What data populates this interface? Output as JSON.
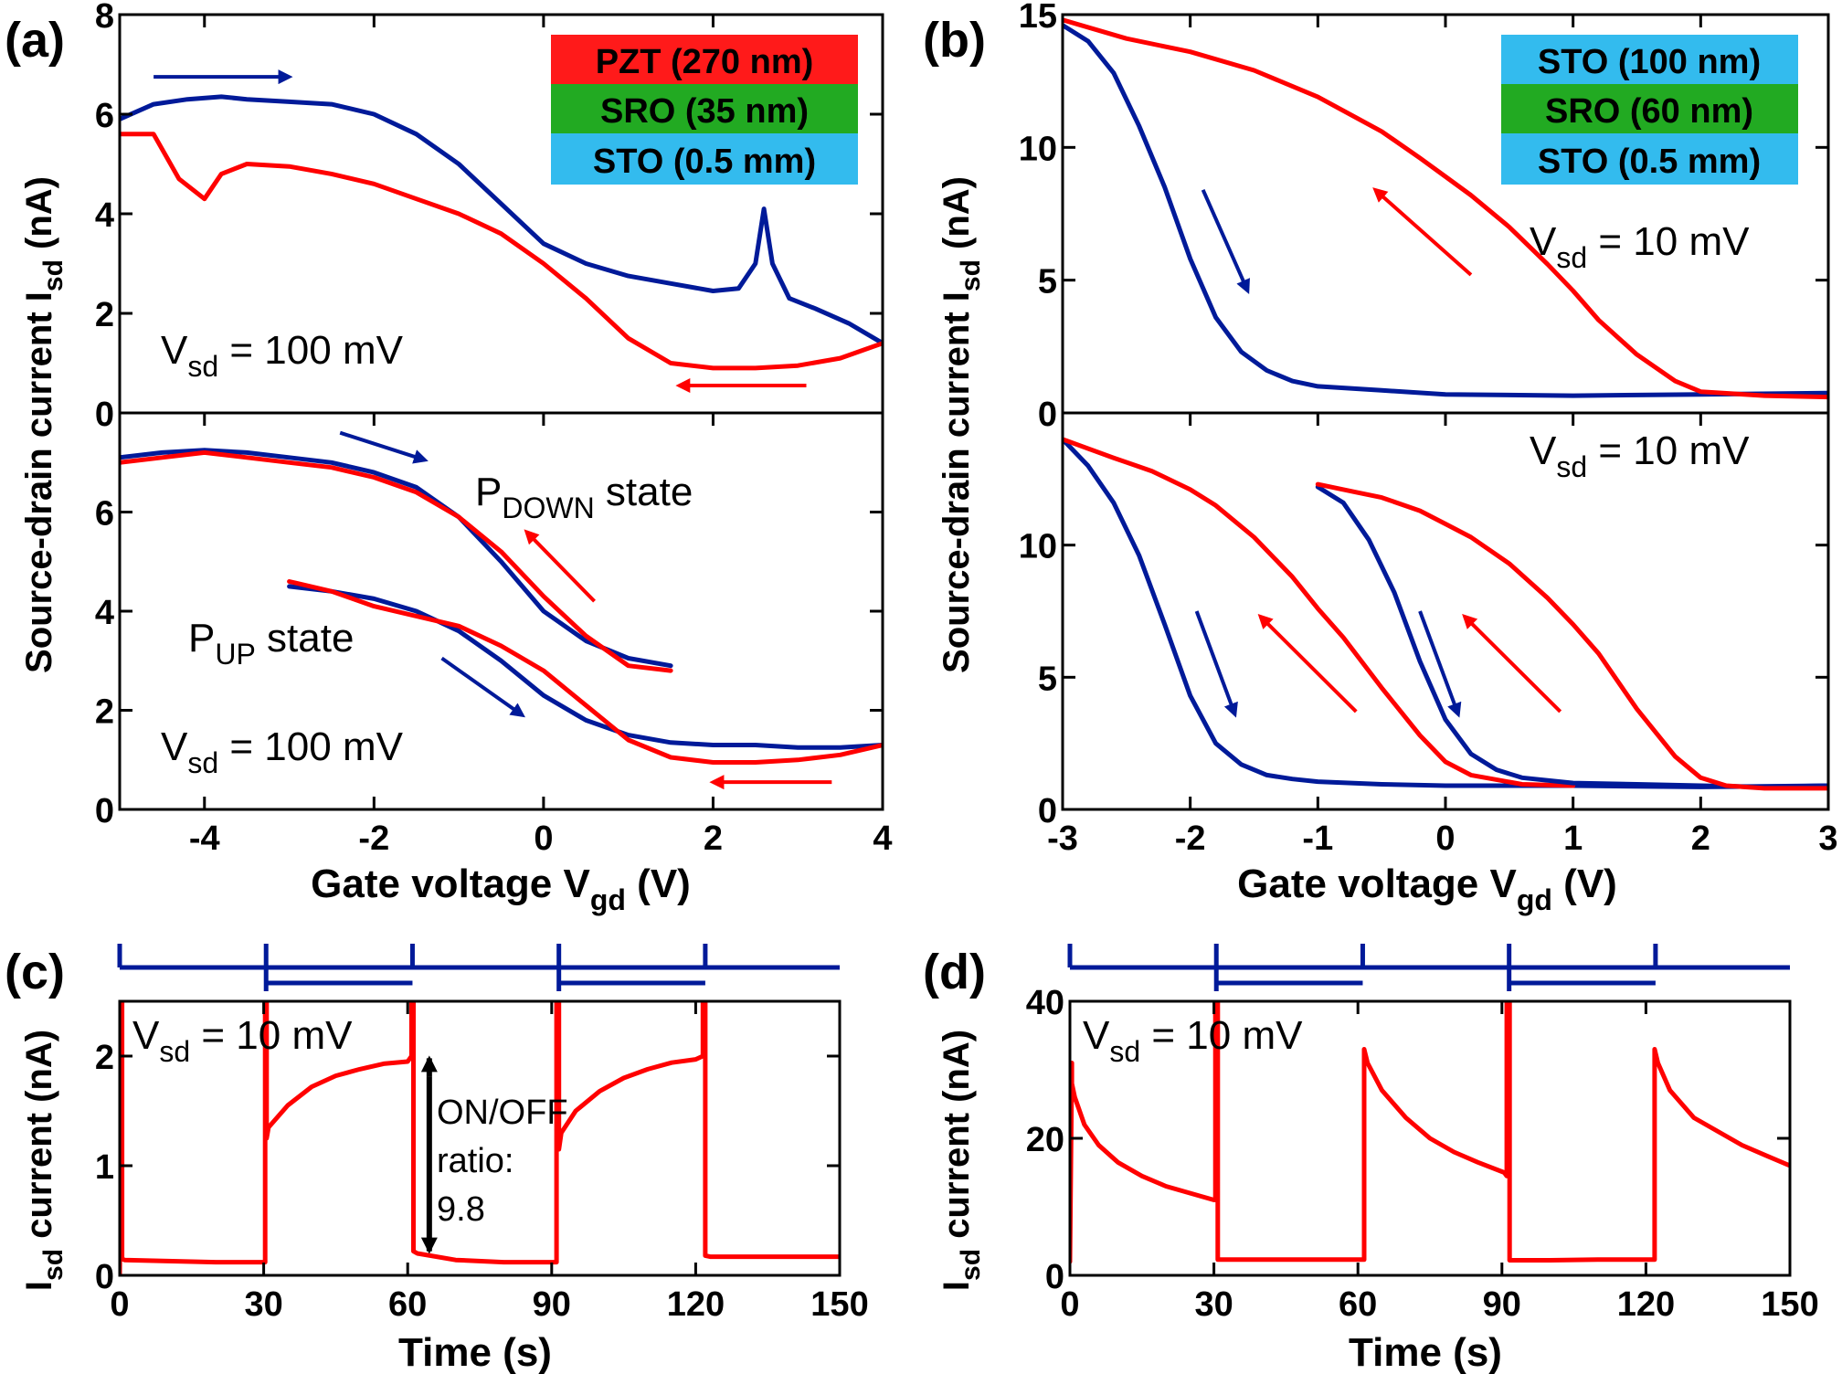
{
  "chart_data": [
    {
      "id": "a_top",
      "panel_label": "(a)",
      "type": "line",
      "ylabel_main": "Source-drain current I",
      "ylabel_sub": "sd",
      "ylabel_unit": " (nA)",
      "xlim": [
        -5,
        4
      ],
      "ylim": [
        0,
        8
      ],
      "yticks": [
        0,
        2,
        4,
        6,
        8
      ],
      "legend": [
        "PZT (270 nm)",
        "SRO (35 nm)",
        "STO (0.5 mm)"
      ],
      "annotation": {
        "main": "V",
        "sub": "sd",
        "rest": " = 100 mV"
      },
      "series": [
        {
          "name": "forward sweep",
          "color": "#001a99",
          "x": [
            -5,
            -4.6,
            -4.2,
            -3.8,
            -3.5,
            -3.0,
            -2.5,
            -2.0,
            -1.5,
            -1.0,
            -0.5,
            0,
            0.5,
            1.0,
            1.5,
            2.0,
            2.3,
            2.5,
            2.6,
            2.7,
            2.9,
            3.2,
            3.6,
            4.0
          ],
          "y": [
            5.9,
            6.2,
            6.3,
            6.35,
            6.3,
            6.25,
            6.2,
            6.0,
            5.6,
            5.0,
            4.2,
            3.4,
            3.0,
            2.75,
            2.6,
            2.45,
            2.5,
            3.0,
            4.1,
            3.0,
            2.3,
            2.1,
            1.8,
            1.4
          ]
        },
        {
          "name": "backward sweep",
          "color": "#ff0000",
          "x": [
            4.0,
            3.5,
            3.0,
            2.5,
            2.0,
            1.5,
            1.0,
            0.5,
            0,
            -0.5,
            -1.0,
            -1.5,
            -2.0,
            -2.5,
            -3.0,
            -3.5,
            -3.8,
            -4.0,
            -4.3,
            -4.6,
            -5.0
          ],
          "y": [
            1.4,
            1.1,
            0.95,
            0.9,
            0.9,
            1.0,
            1.5,
            2.3,
            3.0,
            3.6,
            4.0,
            4.3,
            4.6,
            4.8,
            4.95,
            5.0,
            4.8,
            4.3,
            4.7,
            5.6,
            5.6
          ]
        }
      ],
      "arrows": [
        {
          "color": "#001a99",
          "from": [
            -4.6,
            6.75
          ],
          "to": [
            -3.0,
            6.75
          ]
        },
        {
          "color": "#ff0000",
          "from": [
            3.1,
            0.55
          ],
          "to": [
            1.6,
            0.55
          ]
        }
      ]
    },
    {
      "id": "a_bottom",
      "type": "line",
      "xlabel_main": "Gate voltage V",
      "xlabel_sub": "gd",
      "xlabel_unit": " (V)",
      "xlim": [
        -5,
        4
      ],
      "ylim": [
        0,
        8
      ],
      "yticks": [
        0,
        2,
        4,
        6
      ],
      "xticks": [
        -4,
        -2,
        0,
        2,
        4
      ],
      "xtick_labels": [
        "-4",
        "-2",
        "0",
        "2",
        "4"
      ],
      "annotations": [
        {
          "main": "P",
          "sub": "DOWN",
          "rest": " state"
        },
        {
          "main": "P",
          "sub": "UP",
          "rest": " state"
        },
        {
          "main": "V",
          "sub": "sd",
          "rest": " = 100 mV"
        }
      ],
      "series": [
        {
          "name": "P_DOWN blue",
          "color": "#001a99",
          "x": [
            -5,
            -4.5,
            -4,
            -3.5,
            -3,
            -2.5,
            -2,
            -1.5,
            -1.0,
            -0.5,
            0,
            0.5,
            1.0,
            1.5
          ],
          "y": [
            7.1,
            7.2,
            7.25,
            7.2,
            7.1,
            7.0,
            6.8,
            6.5,
            5.9,
            5.0,
            4.0,
            3.4,
            3.05,
            2.9
          ]
        },
        {
          "name": "P_DOWN red",
          "color": "#ff0000",
          "x": [
            1.5,
            1.0,
            0.5,
            0,
            -0.5,
            -1.0,
            -1.5,
            -2.0,
            -2.5,
            -3,
            -3.5,
            -4,
            -4.5,
            -5
          ],
          "y": [
            2.8,
            2.9,
            3.5,
            4.3,
            5.2,
            5.9,
            6.4,
            6.7,
            6.9,
            7.0,
            7.1,
            7.2,
            7.1,
            7.0
          ]
        },
        {
          "name": "P_UP blue",
          "color": "#001a99",
          "x": [
            -3.0,
            -2.5,
            -2.0,
            -1.5,
            -1.0,
            -0.5,
            0,
            0.5,
            1.0,
            1.5,
            2.0,
            2.5,
            3.0,
            3.5,
            4.0
          ],
          "y": [
            4.5,
            4.4,
            4.25,
            4.0,
            3.6,
            3.0,
            2.3,
            1.8,
            1.5,
            1.35,
            1.3,
            1.3,
            1.25,
            1.25,
            1.3
          ]
        },
        {
          "name": "P_UP red",
          "color": "#ff0000",
          "x": [
            4.0,
            3.5,
            3.0,
            2.5,
            2.0,
            1.5,
            1.0,
            0.5,
            0,
            -0.5,
            -1.0,
            -1.5,
            -2.0,
            -2.5,
            -3.0
          ],
          "y": [
            1.3,
            1.1,
            1.0,
            0.95,
            0.95,
            1.05,
            1.4,
            2.1,
            2.8,
            3.3,
            3.7,
            3.9,
            4.1,
            4.4,
            4.6
          ]
        }
      ],
      "arrows": [
        {
          "color": "#001a99",
          "from": [
            -2.4,
            7.6
          ],
          "to": [
            -1.4,
            7.05
          ]
        },
        {
          "color": "#ff0000",
          "from": [
            0.6,
            4.2
          ],
          "to": [
            -0.2,
            5.6
          ]
        },
        {
          "color": "#001a99",
          "from": [
            -1.2,
            3.05
          ],
          "to": [
            -0.25,
            1.9
          ]
        },
        {
          "color": "#ff0000",
          "from": [
            3.4,
            0.55
          ],
          "to": [
            2.0,
            0.55
          ]
        }
      ]
    },
    {
      "id": "b_top",
      "panel_label": "(b)",
      "type": "line",
      "ylabel_main": "Source-drain current I",
      "ylabel_sub": "sd",
      "ylabel_unit": " (nA)",
      "xlim": [
        -3,
        3
      ],
      "ylim": [
        0,
        15
      ],
      "yticks": [
        0,
        5,
        10,
        15
      ],
      "legend": [
        "STO (100 nm)",
        "SRO (60 nm)",
        "STO (0.5 mm)"
      ],
      "annotation": {
        "main": "V",
        "sub": "sd",
        "rest": " = 10 mV"
      },
      "series": [
        {
          "name": "forward sweep",
          "color": "#001a99",
          "x": [
            -3,
            -2.8,
            -2.6,
            -2.4,
            -2.2,
            -2.0,
            -1.8,
            -1.6,
            -1.4,
            -1.2,
            -1.0,
            -0.5,
            0,
            1,
            2,
            3
          ],
          "y": [
            14.6,
            14.0,
            12.8,
            10.8,
            8.5,
            5.8,
            3.6,
            2.3,
            1.6,
            1.2,
            1.0,
            0.85,
            0.7,
            0.65,
            0.7,
            0.75
          ]
        },
        {
          "name": "backward sweep",
          "color": "#ff0000",
          "x": [
            3,
            2.5,
            2.0,
            1.8,
            1.5,
            1.2,
            1.0,
            0.8,
            0.5,
            0.2,
            0,
            -0.2,
            -0.5,
            -1.0,
            -1.5,
            -2.0,
            -2.5,
            -3.0
          ],
          "y": [
            0.6,
            0.65,
            0.8,
            1.2,
            2.2,
            3.5,
            4.6,
            5.6,
            7.0,
            8.2,
            8.9,
            9.6,
            10.6,
            11.9,
            12.9,
            13.6,
            14.1,
            14.8
          ]
        }
      ],
      "arrows": [
        {
          "color": "#001a99",
          "from": [
            -1.9,
            8.4
          ],
          "to": [
            -1.55,
            4.6
          ]
        },
        {
          "color": "#ff0000",
          "from": [
            0.2,
            5.2
          ],
          "to": [
            -0.55,
            8.4
          ]
        }
      ]
    },
    {
      "id": "b_bottom",
      "type": "line",
      "xlabel_main": "Gate voltage V",
      "xlabel_sub": "gd",
      "xlabel_unit": " (V)",
      "xlim": [
        -3,
        3
      ],
      "ylim": [
        0,
        15
      ],
      "yticks": [
        0,
        5,
        10
      ],
      "xticks": [
        -3,
        -2,
        -1,
        0,
        1,
        2,
        3
      ],
      "xtick_labels": [
        "-3",
        "-2",
        "-1",
        "0",
        "1",
        "2",
        "3"
      ],
      "annotation": {
        "main": "V",
        "sub": "sd",
        "rest": " = 10 mV"
      },
      "series": [
        {
          "name": "loop 1 blue",
          "color": "#001a99",
          "x": [
            -3,
            -2.8,
            -2.6,
            -2.4,
            -2.2,
            -2.0,
            -1.8,
            -1.6,
            -1.4,
            -1.2,
            -1.0,
            -0.5,
            0,
            0.5,
            1,
            2,
            3
          ],
          "y": [
            14.0,
            13.0,
            11.6,
            9.6,
            7.0,
            4.3,
            2.5,
            1.7,
            1.3,
            1.15,
            1.05,
            0.95,
            0.9,
            0.9,
            0.9,
            0.85,
            0.9
          ]
        },
        {
          "name": "loop 1 red",
          "color": "#ff0000",
          "x": [
            1.0,
            0.6,
            0.2,
            0,
            -0.2,
            -0.5,
            -0.8,
            -1.0,
            -1.2,
            -1.5,
            -1.8,
            -2.0,
            -2.3,
            -2.6,
            -3.0
          ],
          "y": [
            0.9,
            0.95,
            1.3,
            1.8,
            2.8,
            4.6,
            6.5,
            7.6,
            8.8,
            10.3,
            11.5,
            12.1,
            12.8,
            13.3,
            14.0
          ]
        },
        {
          "name": "loop 2 blue",
          "color": "#001a99",
          "x": [
            -1.0,
            -0.8,
            -0.6,
            -0.4,
            -0.2,
            0,
            0.2,
            0.4,
            0.6,
            1.0,
            1.5,
            2.0,
            2.5,
            3.0
          ],
          "y": [
            12.2,
            11.6,
            10.2,
            8.2,
            5.6,
            3.4,
            2.1,
            1.5,
            1.2,
            1.0,
            0.95,
            0.9,
            0.85,
            0.9
          ]
        },
        {
          "name": "loop 2 red",
          "color": "#ff0000",
          "x": [
            3.0,
            2.5,
            2.2,
            2.0,
            1.8,
            1.5,
            1.2,
            1.0,
            0.8,
            0.5,
            0.2,
            0,
            -0.2,
            -0.5,
            -0.7,
            -1.0
          ],
          "y": [
            0.8,
            0.8,
            0.9,
            1.2,
            2.0,
            3.8,
            5.9,
            7.0,
            8.0,
            9.3,
            10.3,
            10.8,
            11.3,
            11.8,
            12.0,
            12.3
          ]
        }
      ],
      "arrows": [
        {
          "color": "#001a99",
          "from": [
            -1.95,
            7.5
          ],
          "to": [
            -1.65,
            3.6
          ]
        },
        {
          "color": "#ff0000",
          "from": [
            -0.7,
            3.7
          ],
          "to": [
            -1.45,
            7.3
          ]
        },
        {
          "color": "#001a99",
          "from": [
            -0.2,
            7.5
          ],
          "to": [
            0.1,
            3.6
          ]
        },
        {
          "color": "#ff0000",
          "from": [
            0.9,
            3.7
          ],
          "to": [
            0.15,
            7.3
          ]
        }
      ]
    },
    {
      "id": "c",
      "panel_label": "(c)",
      "type": "line",
      "ylabel_main": "I",
      "ylabel_sub": "sd",
      "ylabel_unit": " current (nA)",
      "xlabel": "Time (s)",
      "xlim": [
        0,
        150
      ],
      "ylim": [
        0,
        2.5
      ],
      "yticks": [
        0,
        1,
        2
      ],
      "xticks": [
        0,
        30,
        60,
        90,
        120,
        150
      ],
      "xtick_labels": [
        "0",
        "30",
        "60",
        "90",
        "120",
        "150"
      ],
      "annotation": {
        "main": "V",
        "sub": "sd",
        "rest": " = 10 mV"
      },
      "on_off_text": [
        "ON/OFF",
        "ratio:",
        "9.8"
      ],
      "on_off_arrow": {
        "x": 64.5,
        "y_top": 1.98,
        "y_bottom": 0.22
      },
      "pulse_train": {
        "color": "#001a99",
        "levels": [
          "high",
          "low",
          "high",
          "low",
          "high",
          "low"
        ],
        "switch_times": [
          0,
          30.5,
          61,
          91.5,
          122,
          150
        ]
      },
      "series": [
        {
          "name": "current",
          "color": "#ff0000",
          "x": [
            0,
            0.5,
            0.5,
            1,
            10,
            20,
            30,
            30.3,
            30.3,
            30.6,
            30.6,
            31,
            35,
            40,
            45,
            50,
            55,
            60,
            60.8,
            60.8,
            61.2,
            61.2,
            62,
            70,
            80,
            90,
            91,
            91,
            91.5,
            91.5,
            92,
            95,
            100,
            105,
            110,
            115,
            120,
            121.5,
            121.5,
            122,
            122,
            123,
            130,
            140,
            150
          ],
          "y": [
            0,
            2.5,
            0.15,
            0.14,
            0.13,
            0.12,
            0.12,
            0.12,
            2.5,
            2.5,
            1.25,
            1.35,
            1.55,
            1.72,
            1.82,
            1.88,
            1.93,
            1.95,
            2.0,
            2.5,
            2.5,
            0.22,
            0.2,
            0.14,
            0.12,
            0.12,
            0.12,
            2.5,
            2.5,
            1.15,
            1.3,
            1.5,
            1.68,
            1.8,
            1.88,
            1.94,
            1.97,
            2.0,
            2.5,
            2.5,
            0.18,
            0.17,
            0.17,
            0.17,
            0.17
          ]
        }
      ]
    },
    {
      "id": "d",
      "panel_label": "(d)",
      "type": "line",
      "ylabel_main": "I",
      "ylabel_sub": "sd",
      "ylabel_unit": " current (nA)",
      "xlabel": "Time (s)",
      "xlim": [
        0,
        150
      ],
      "ylim": [
        0,
        40
      ],
      "yticks": [
        0,
        20,
        40
      ],
      "xticks": [
        0,
        30,
        60,
        90,
        120,
        150
      ],
      "xtick_labels": [
        "0",
        "30",
        "60",
        "90",
        "120",
        "150"
      ],
      "annotation": {
        "main": "V",
        "sub": "sd",
        "rest": " = 10 mV"
      },
      "pulse_train": {
        "color": "#001a99",
        "levels": [
          "high",
          "low",
          "high",
          "low",
          "high",
          "low"
        ],
        "switch_times": [
          0,
          30.5,
          61,
          91.5,
          122,
          150
        ]
      },
      "series": [
        {
          "name": "current",
          "color": "#ff0000",
          "x": [
            0,
            0.4,
            0.4,
            1,
            3,
            6,
            10,
            15,
            20,
            25,
            30,
            30.3,
            30.3,
            30.8,
            30.8,
            35,
            45,
            55,
            61,
            61.3,
            61.3,
            62,
            65,
            70,
            75,
            80,
            85,
            90.5,
            91,
            91,
            91.6,
            91.6,
            100,
            110,
            120,
            121.8,
            121.8,
            122.5,
            125,
            130,
            135,
            140,
            145,
            150
          ],
          "y": [
            2,
            31,
            28,
            26,
            22,
            19,
            16.5,
            14.5,
            13,
            12,
            11,
            11,
            40,
            40,
            2.3,
            2.3,
            2.3,
            2.3,
            2.3,
            2.3,
            33,
            31,
            27,
            23,
            20,
            18,
            16.5,
            15,
            14.5,
            40,
            40,
            2.2,
            2.2,
            2.3,
            2.3,
            2.3,
            33,
            31,
            27,
            23,
            21,
            19,
            17.5,
            16
          ]
        }
      ]
    }
  ]
}
